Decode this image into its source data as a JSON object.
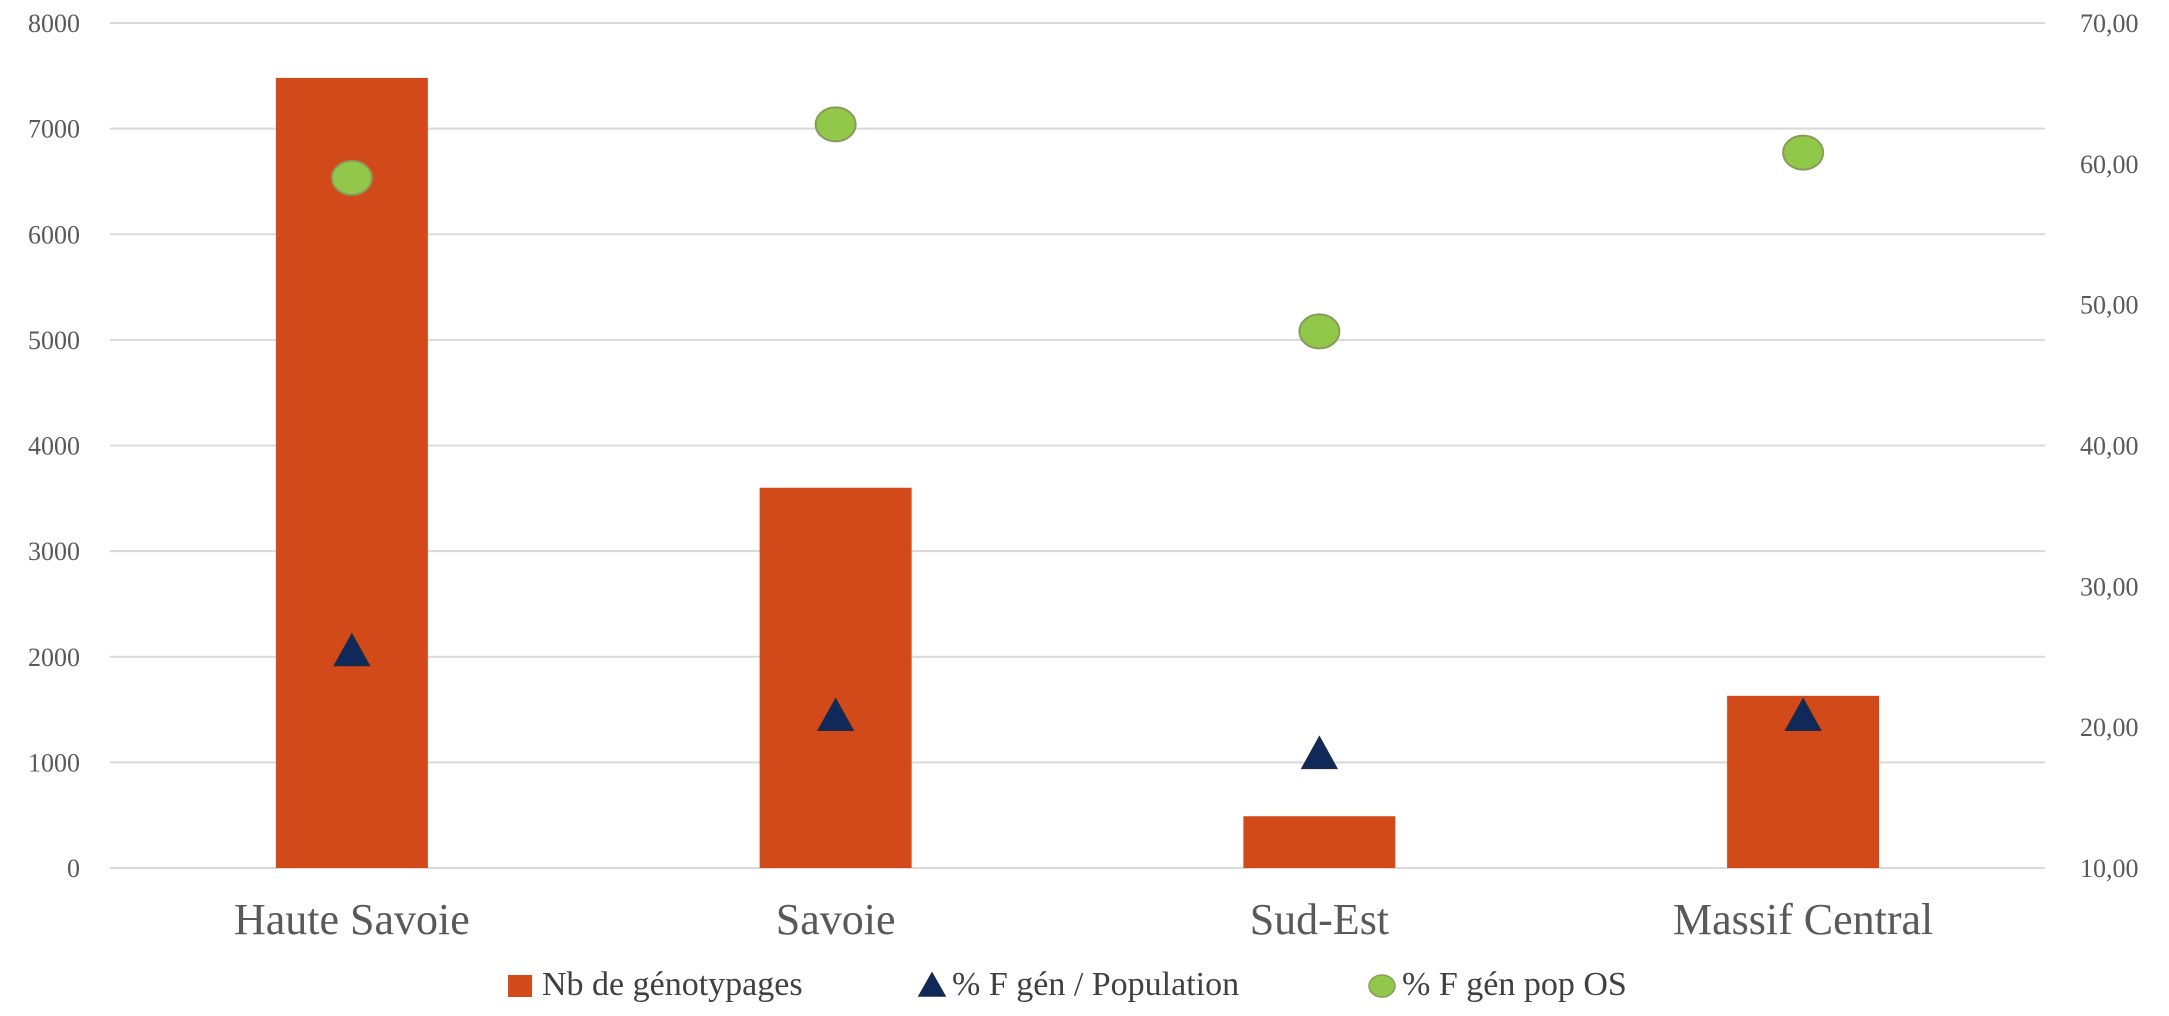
{
  "chart_data": {
    "type": "bar",
    "categories": [
      "Haute Savoie",
      "Savoie",
      "Sud-Est",
      "Massif Central"
    ],
    "series": [
      {
        "name": "Nb de génotypages",
        "kind": "bar",
        "axis": "left",
        "color": "#D24A19",
        "values": [
          7480,
          3600,
          490,
          1630
        ]
      },
      {
        "name": "% F gén / Population",
        "kind": "marker-triangle",
        "axis": "right",
        "color": "#0F2A5A",
        "values": [
          25.3,
          20.7,
          18.0,
          20.7
        ]
      },
      {
        "name": "%  F gén pop OS",
        "kind": "marker-circle",
        "axis": "right",
        "color": "#92C84A",
        "values": [
          59.0,
          62.8,
          48.1,
          60.8
        ]
      }
    ],
    "left_axis": {
      "min": 0,
      "max": 8000,
      "step": 1000,
      "tick_labels": [
        "0",
        "1000",
        "2000",
        "3000",
        "4000",
        "5000",
        "6000",
        "7000",
        "8000"
      ]
    },
    "right_axis": {
      "min": 10,
      "max": 70,
      "step": 10,
      "tick_labels": [
        "10,00",
        "20,00",
        "30,00",
        "40,00",
        "50,00",
        "60,00",
        "70,00"
      ]
    },
    "grid": true,
    "legend_position": "bottom"
  }
}
